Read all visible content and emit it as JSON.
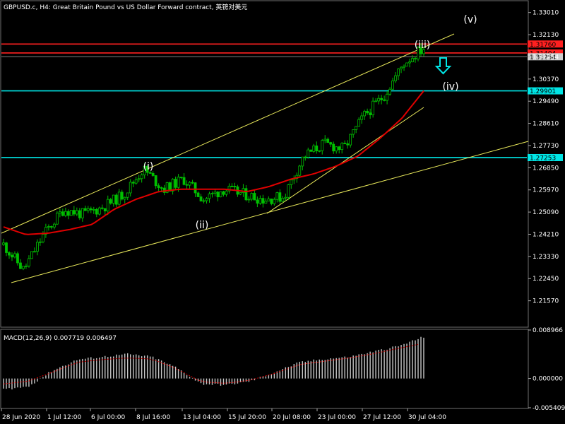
{
  "header": {
    "title": "GBPUSD.c, H4:  Great Britain Pound vs US Dollar Forward contract, 英镑对美元"
  },
  "colors": {
    "background": "#000000",
    "candle_up": "#00c000",
    "candle_down": "#00c000",
    "moving_average": "#e00000",
    "resistance": "#ff2020",
    "support": "#00e5e5",
    "channel": "#e8e85a",
    "macd_histogram": "#c8c8c8",
    "macd_signal": "#e00000",
    "text": "#ffffff",
    "grid": "#4a4a4a"
  },
  "chart_data": [
    {
      "type": "candlestick",
      "symbol": "GBPUSD.c",
      "timeframe": "H4",
      "title": "GBPUSD.c, H4:  Great Britain Pound vs US Dollar Forward contract, 英镑对美元",
      "ylim": [
        1.2055,
        1.3345
      ],
      "y_ticks": [
        "1.33010",
        "1.32130",
        "1.31254",
        "1.30370",
        "1.29490",
        "1.28610",
        "1.27730",
        "1.26850",
        "1.25970",
        "1.25090",
        "1.24210",
        "1.23330",
        "1.22450",
        "1.21570"
      ],
      "x_ticks": [
        "28 Jun 2020",
        "1 Jul 12:00",
        "6 Jul 00:00",
        "8 Jul 16:00",
        "13 Jul 04:00",
        "15 Jul 20:00",
        "20 Jul 08:00",
        "23 Jul 00:00",
        "27 Jul 12:00",
        "30 Jul 04:00"
      ],
      "price_path": [
        1.238,
        1.228,
        1.242,
        1.252,
        1.25,
        1.253,
        1.258,
        1.268,
        1.26,
        1.264,
        1.256,
        1.26,
        1.258,
        1.256,
        1.257,
        1.273,
        1.278,
        1.276,
        1.289,
        1.297,
        1.31,
        1.316
      ],
      "moving_average": [
        1.245,
        1.242,
        1.2425,
        1.244,
        1.246,
        1.252,
        1.256,
        1.259,
        1.26,
        1.26,
        1.26,
        1.259,
        1.261,
        1.264,
        1.266,
        1.269,
        1.273,
        1.28,
        1.288,
        1.299
      ],
      "horizontal_lines": [
        {
          "price": 1.3176,
          "label": "1.31760",
          "color": "red"
        },
        {
          "price": 1.31404,
          "label": "1.31404",
          "color": "red"
        },
        {
          "price": 1.31254,
          "label": "1.31254",
          "color": "gray"
        },
        {
          "price": 1.29901,
          "label": "1.29901",
          "color": "cyan"
        },
        {
          "price": 1.27253,
          "label": "1.27253",
          "color": "cyan"
        }
      ],
      "wave_labels": [
        "(i)",
        "(ii)",
        "(iii)",
        "(iv)",
        "(v)"
      ],
      "annotations": [
        "down-arrow"
      ]
    },
    {
      "type": "bar",
      "name": "MACD",
      "label": "MACD(12,26,9) 0.007719 0.006497",
      "y_ticks": [
        "0.008966",
        "0.000000",
        "-0.005409"
      ],
      "ylim": [
        -0.005409,
        0.008966
      ],
      "histogram_path": [
        -0.002,
        -0.0015,
        0.0015,
        0.0035,
        0.004,
        0.0045,
        0.004,
        0.002,
        -0.001,
        -0.0012,
        -0.0005,
        0.0012,
        0.003,
        0.0036,
        0.004,
        0.005,
        0.006,
        0.0077
      ],
      "signal_path": [
        -0.001,
        -0.0005,
        0.0012,
        0.003,
        0.0035,
        0.0038,
        0.0036,
        0.0018,
        -0.0006,
        -0.0009,
        -0.0003,
        0.001,
        0.0026,
        0.0032,
        0.0038,
        0.0046,
        0.0056,
        0.0065
      ]
    }
  ]
}
